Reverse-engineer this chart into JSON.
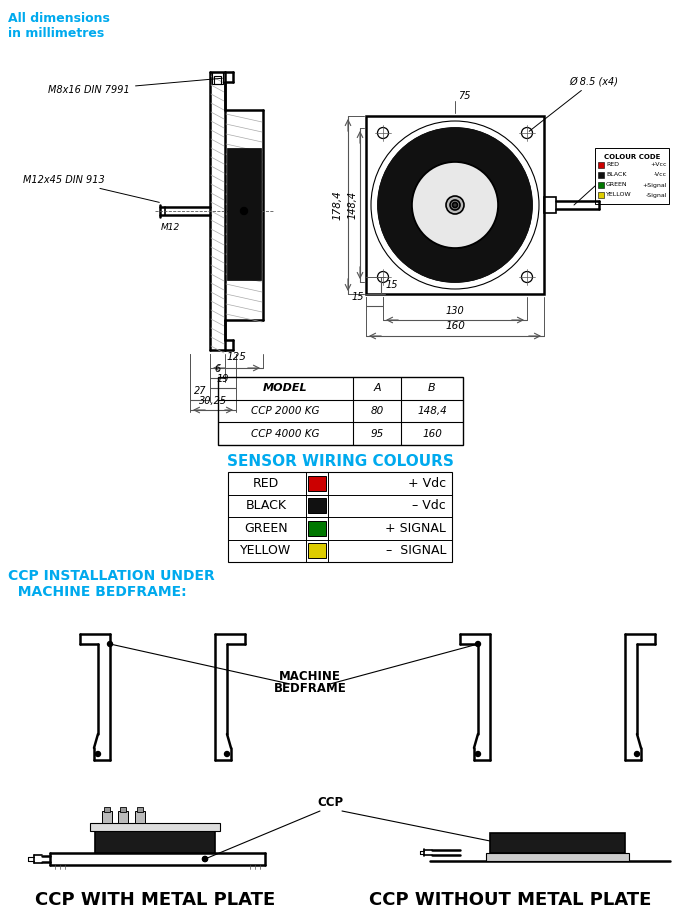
{
  "title_line1": "All dimensions",
  "title_line2": "in millimetres",
  "cyan": "#00AAEE",
  "black": "#000000",
  "dark_gray": "#555555",
  "light_gray": "#CCCCCC",
  "med_gray": "#999999",
  "table_headers": [
    "MODEL",
    "A",
    "B"
  ],
  "table_rows": [
    [
      "CCP 2000 KG",
      "80",
      "148,4"
    ],
    [
      "CCP 4000 KG",
      "95",
      "160"
    ]
  ],
  "wiring_title": "SENSOR WIRING COLOURS",
  "wiring_colors": [
    "#CC0000",
    "#111111",
    "#007700",
    "#DDCC00"
  ],
  "wiring_labels": [
    "RED",
    "BLACK",
    "GREEN",
    "YELLOW"
  ],
  "wiring_signals": [
    "+ Vdc",
    "– Vdc",
    "+ SIGNAL",
    "–  SIGNAL"
  ],
  "install_title_line1": "CCP INSTALLATION UNDER",
  "install_title_line2": "  MACHINE BEDFRAME:",
  "bottom_label_left": "CCP WITH METAL PLATE",
  "bottom_label_right": "CCP WITHOUT METAL PLATE",
  "cc_labels": [
    "RED",
    "BLACK",
    "GREEN",
    "YELLOW"
  ],
  "cc_sigs": [
    "+Vcc",
    "-Vcc",
    "+Signal",
    "-Signal"
  ],
  "cc_colors": [
    "#CC0000",
    "#111111",
    "#007700",
    "#DDCC00"
  ]
}
